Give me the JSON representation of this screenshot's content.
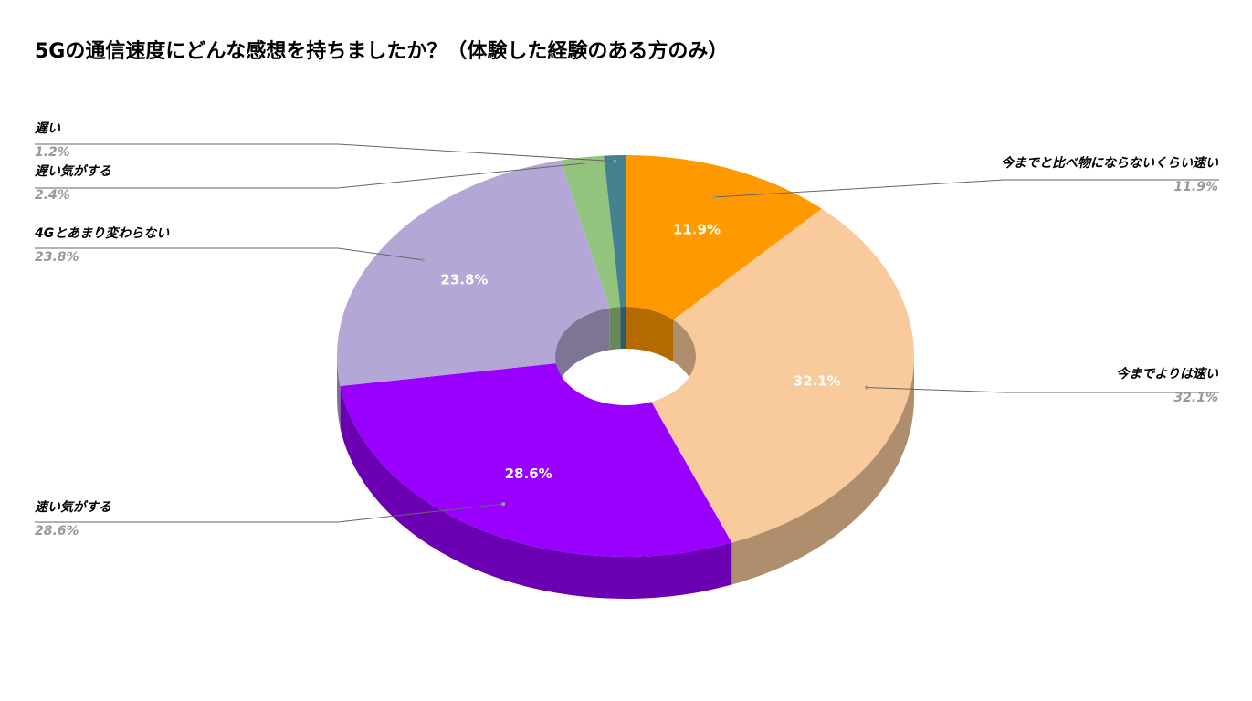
{
  "chart_data": {
    "type": "pie",
    "variant": "3d-donut",
    "title": "5Gの通信速度にどんな感想を持ちましたか？（体験した経験のある方のみ）",
    "slices": [
      {
        "label": "今までと比べ物にならないくらい速い",
        "value": 11.9,
        "display": "11.9%",
        "color": "#ff9900",
        "side_color": "#b36b00",
        "legend_side": "right"
      },
      {
        "label": "今までよりは速い",
        "value": 32.1,
        "display": "32.1%",
        "color": "#f9cb9c",
        "side_color": "#ae8e6d",
        "legend_side": "right"
      },
      {
        "label": "速い気がする",
        "value": 28.6,
        "display": "28.6%",
        "color": "#9900ff",
        "side_color": "#6b00b3",
        "legend_side": "left"
      },
      {
        "label": "4Gとあまり変わらない",
        "value": 23.8,
        "display": "23.8%",
        "color": "#b4a7d6",
        "side_color": "#7e7596",
        "legend_side": "left"
      },
      {
        "label": "遅い気がする",
        "value": 2.4,
        "display": "2.4%",
        "color": "#93c47d",
        "side_color": "#678958",
        "legend_side": "left"
      },
      {
        "label": "遅い",
        "value": 1.2,
        "display": "1.2%",
        "color": "#45818e",
        "side_color": "#305a63",
        "legend_side": "left"
      }
    ],
    "legend": "outside-labels-with-leader-lines"
  }
}
